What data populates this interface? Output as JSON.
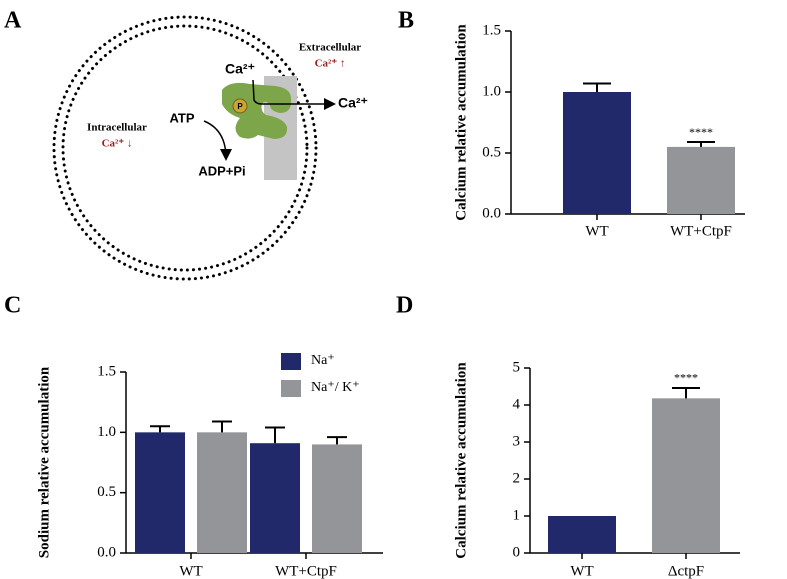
{
  "diagram": {
    "panel_label": "A",
    "labels": [
      "Extracellular",
      "Ca²⁺ ↑",
      "Ca²⁺",
      "Ca²⁺",
      "ATP",
      "Intracellular",
      "Ca²⁺ ↓",
      "ADP+Pi",
      "P"
    ]
  },
  "chart_data": [
    {
      "type": "bar",
      "panel_label": "B",
      "ylabel": "Calcium relative accumulation",
      "categories": [
        "WT",
        "WT+CtpF"
      ],
      "values": [
        1.0,
        0.55
      ],
      "errors": [
        0.07,
        0.04
      ],
      "colors": [
        "#22296b",
        "#939598"
      ],
      "significance": [
        null,
        "****"
      ],
      "ylim": [
        0,
        1.5
      ],
      "yticks": [
        {
          "value": 0,
          "label": "0.0"
        },
        {
          "value": 0.5,
          "label": "0.5"
        },
        {
          "value": 1,
          "label": "1.0"
        },
        {
          "value": 1.5,
          "label": "1.5"
        }
      ]
    },
    {
      "type": "grouped-bar",
      "panel_label": "C",
      "ylabel": "Sodium relative accumulation",
      "categories": [
        "WT",
        "WT+CtpF"
      ],
      "series": [
        {
          "name": "Na⁺",
          "color": "#22296b",
          "values": [
            1.0,
            0.91
          ],
          "errors": [
            0.05,
            0.13
          ]
        },
        {
          "name": "Na⁺/ K⁺",
          "color": "#939598",
          "values": [
            1.0,
            0.9
          ],
          "errors": [
            0.09,
            0.06
          ]
        }
      ],
      "ylim": [
        0,
        1.5
      ],
      "yticks": [
        {
          "value": 0,
          "label": "0.0"
        },
        {
          "value": 0.5,
          "label": "0.5"
        },
        {
          "value": 1,
          "label": "1.0"
        },
        {
          "value": 1.5,
          "label": "1.5"
        }
      ]
    },
    {
      "type": "bar",
      "panel_label": "D",
      "ylabel": "Calcium relative accumulation",
      "categories": [
        "WT",
        "ΔctpF"
      ],
      "values": [
        1.0,
        4.18
      ],
      "errors": [
        null,
        0.28
      ],
      "colors": [
        "#22296b",
        "#939598"
      ],
      "significance": [
        null,
        "****"
      ],
      "ylim": [
        0,
        5
      ],
      "yticks": [
        0,
        1,
        2,
        3,
        4,
        5
      ]
    }
  ]
}
